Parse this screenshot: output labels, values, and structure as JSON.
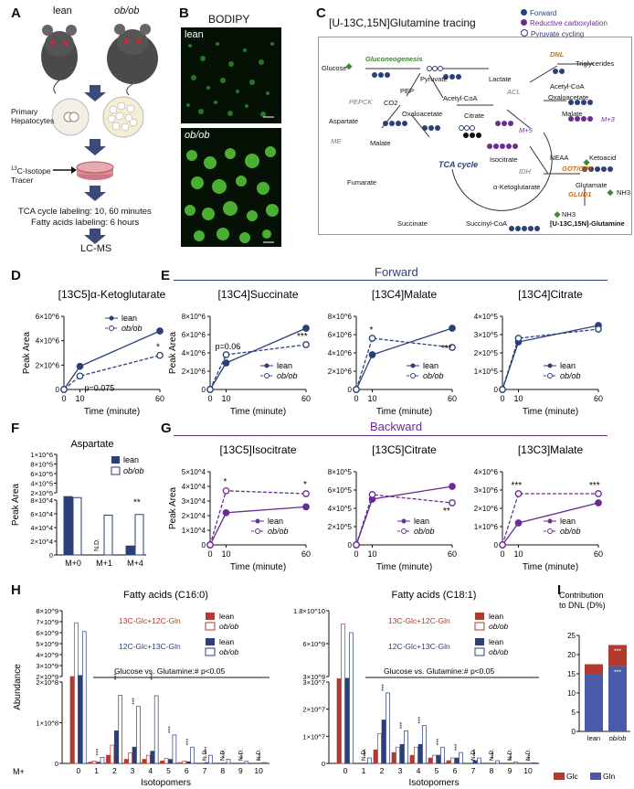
{
  "colors": {
    "lean": "#2b3f7a",
    "obob": "#3d4f8f",
    "purple": "#6b2c91",
    "red": "#b23a2e",
    "green": "#3a8a2a",
    "orange": "#c86a1a",
    "grey": "#777777"
  },
  "panel_labels": {
    "A": "A",
    "B": "B",
    "C": "C",
    "D": "D",
    "E": "E",
    "F": "F",
    "G": "G",
    "H": "H",
    "I": "I"
  },
  "panelA": {
    "lean": "lean",
    "obob": "ob/ob",
    "step1": "Primary",
    "step1b": "Hepatocytes",
    "tracer_sup": "13",
    "tracer": "C-Isotope",
    "tracer2": "Tracer",
    "line1": "TCA cycle labeling: 10, 60 minutes",
    "line2": "Fatty acids labeling: 6 hours",
    "final": "LC-MS"
  },
  "panelB": {
    "title": "BODIPY",
    "top_label": "lean",
    "bottom_label": "ob/ob"
  },
  "panelC": {
    "title": "[U-13C,15N]Glutamine tracing",
    "legend": [
      "Forward",
      "Reductive carboxylation",
      "Pyruvate cycling"
    ],
    "nodes": {
      "glucose": "Glucose",
      "gluconeo": "Gluconeogenesis",
      "pyruvate": "Pyruvate",
      "lactate": "Lactate",
      "pep": "PEP",
      "pepck": "PEPCK",
      "co2": "CO2",
      "acetylcoa": "Acetyl-CoA",
      "oaa": "Oxaloacetate",
      "aspartate": "Aspartate",
      "me": "ME",
      "malate": "Malate",
      "citrate": "Citrate",
      "acl": "ACL",
      "acetylcoa2": "Acetyl-CoA",
      "oaa2": "Oxaloacetate",
      "malate2": "Malate",
      "m3": "M+3",
      "m5": "M+5",
      "dnl": "DNL",
      "triglycerides": "Triglycerides",
      "isocitrate": "Isocitrate",
      "idh": "IDH",
      "tca": "TCA cycle",
      "nh4": "NEAA",
      "ketoacid": "Ketoacid",
      "gotgpt": "GOT/GPT",
      "akg": "α-Ketoglutarate",
      "glutamate": "Glutamate",
      "gludh": "GLUD1",
      "nh3": "NH3",
      "nh3b": "NH3",
      "fumarate": "Fumarate",
      "succinate": "Succinate",
      "succcoa": "Succinyl-CoA",
      "glutamine": "[U-13C,15N]-Glutamine"
    }
  },
  "forward_header": "Forward",
  "backward_header": "Backward",
  "common": {
    "peak_area": "Peak Area",
    "time_label": "Time (minute)",
    "lean": "lean",
    "obob": "ob/ob"
  },
  "chart_data": [
    {
      "id": "D",
      "type": "line",
      "title": "[13C5]α-Ketoglutarate",
      "x": [
        0,
        10,
        60
      ],
      "ylim": [
        0,
        6000000.0
      ],
      "yticks": [
        "0",
        "2×10^6",
        "4×10^6",
        "6×10^6"
      ],
      "series": [
        {
          "name": "lean",
          "values": [
            0,
            1900000.0,
            4800000.0
          ]
        },
        {
          "name": "ob/ob",
          "values": [
            0,
            1100000.0,
            2800000.0
          ]
        }
      ],
      "annotations": [
        "p=0.075",
        "*"
      ]
    },
    {
      "id": "E1",
      "type": "line",
      "title": "[13C4]Succinate",
      "x": [
        0,
        10,
        60
      ],
      "ylim": [
        0,
        8000000.0
      ],
      "yticks": [
        "0",
        "2×10^6",
        "4×10^6",
        "6×10^6",
        "8×10^6"
      ],
      "series": [
        {
          "name": "lean",
          "values": [
            0,
            2900000.0,
            6700000.0
          ]
        },
        {
          "name": "ob/ob",
          "values": [
            0,
            3800000.0,
            4900000.0
          ]
        }
      ],
      "annotations": [
        "p=0.06",
        "***"
      ]
    },
    {
      "id": "E2",
      "type": "line",
      "title": "[13C4]Malate",
      "x": [
        0,
        10,
        60
      ],
      "ylim": [
        0,
        8000000.0
      ],
      "yticks": [
        "0",
        "2×10^6",
        "4×10^6",
        "6×10^6",
        "8×10^6"
      ],
      "series": [
        {
          "name": "lean",
          "values": [
            0,
            3800000.0,
            6700000.0
          ]
        },
        {
          "name": "ob/ob",
          "values": [
            0,
            5600000.0,
            4600000.0
          ]
        }
      ],
      "annotations": [
        "*",
        "***"
      ]
    },
    {
      "id": "E3",
      "type": "line",
      "title": "[13C4]Citrate",
      "x": [
        0,
        10,
        60
      ],
      "ylim": [
        0,
        400000.0
      ],
      "yticks": [
        "0",
        "1×10^5",
        "2×10^5",
        "3×10^5",
        "4×10^5"
      ],
      "series": [
        {
          "name": "lean",
          "values": [
            0,
            260000.0,
            350000.0
          ]
        },
        {
          "name": "ob/ob",
          "values": [
            0,
            280000.0,
            330000.0
          ]
        }
      ],
      "annotations": []
    },
    {
      "id": "F",
      "type": "bar",
      "title": "Aspartate",
      "categories": [
        "M+0",
        "M+1",
        "M+4"
      ],
      "series": [
        {
          "name": "lean",
          "values": [
            120000.0,
            null,
            13000.0
          ]
        },
        {
          "name": "ob/ob",
          "values": [
            100000.0,
            58000.0,
            59000.0
          ]
        }
      ],
      "yticks_upper": [
        "2×10^5",
        "4×10^5",
        "6×10^5",
        "8×10^5",
        "1×10^6"
      ],
      "yticks_lower": [
        "0",
        "2×10^4",
        "4×10^4",
        "6×10^4",
        "8×10^4"
      ],
      "annotations": [
        "N.D.",
        "**"
      ]
    },
    {
      "id": "G1",
      "type": "line",
      "title": "[13C5]Isocitrate",
      "x": [
        0,
        10,
        60
      ],
      "ylim": [
        0,
        50000.0
      ],
      "yticks": [
        "0",
        "1×10^4",
        "2×10^4",
        "3×10^4",
        "4×10^4",
        "5×10^4"
      ],
      "series": [
        {
          "name": "lean",
          "values": [
            0,
            22000.0,
            26000.0
          ]
        },
        {
          "name": "ob/ob",
          "values": [
            0,
            37000.0,
            35000.0
          ]
        }
      ],
      "annotations": [
        "*",
        "*"
      ]
    },
    {
      "id": "G2",
      "type": "line",
      "title": "[13C5]Citrate",
      "x": [
        0,
        10,
        60
      ],
      "ylim": [
        0,
        800000.0
      ],
      "yticks": [
        "0",
        "2×10^5",
        "4×10^5",
        "6×10^5",
        "8×10^5"
      ],
      "series": [
        {
          "name": "lean",
          "values": [
            0,
            500000.0,
            640000.0
          ]
        },
        {
          "name": "ob/ob",
          "values": [
            0,
            550000.0,
            460000.0
          ]
        }
      ],
      "annotations": [
        "**"
      ]
    },
    {
      "id": "G3",
      "type": "line",
      "title": "[13C3]Malate",
      "x": [
        0,
        10,
        60
      ],
      "ylim": [
        0,
        4000000.0
      ],
      "yticks": [
        "0",
        "1×10^6",
        "2×10^6",
        "3×10^6",
        "4×10^6"
      ],
      "series": [
        {
          "name": "lean",
          "values": [
            0,
            1200000.0,
            2300000.0
          ]
        },
        {
          "name": "ob/ob",
          "values": [
            0,
            2800000.0,
            2800000.0
          ]
        }
      ],
      "annotations": [
        "***",
        "***"
      ]
    },
    {
      "id": "H1",
      "type": "bar",
      "title": "Fatty acids (C16:0)",
      "xlabel": "Isotopomers",
      "ylabel": "Abundance",
      "categories": [
        "0",
        "1",
        "2",
        "3",
        "4",
        "5",
        "6",
        "7",
        "8",
        "9",
        "10"
      ],
      "upper_yticks": [
        "2×10^9",
        "3×10^9",
        "4×10^9",
        "5×10^9",
        "6×10^9",
        "7×10^9",
        "8×10^9"
      ],
      "lower_yticks": [
        "0",
        "1×10^8",
        "2×10^8"
      ],
      "series": [
        {
          "name": "13C-Glc lean",
          "values": [
            2000000000.0,
            3000000.0,
            20000000.0,
            10000000.0,
            10000000.0,
            6000000.0,
            2000000.0,
            null,
            null,
            null,
            null
          ]
        },
        {
          "name": "13C-Glc ob/ob",
          "values": [
            6900000000.0,
            6000000.0,
            45000000.0,
            26000000.0,
            20000000.0,
            12000000.0,
            6000000.0,
            null,
            null,
            null,
            null
          ]
        },
        {
          "name": "13C-Gln lean",
          "values": [
            2100000000.0,
            3000000.0,
            80000000.0,
            40000000.0,
            30000000.0,
            10000000.0,
            4000000.0,
            2000000.0,
            1000000.0,
            null,
            null
          ]
        },
        {
          "name": "13C-Gln ob/ob",
          "values": [
            6100000000.0,
            15000000.0,
            280000000.0,
            140000000.0,
            250000000.0,
            70000000.0,
            40000000.0,
            20000000.0,
            10000000.0,
            5000000.0,
            2000000.0
          ]
        }
      ],
      "legend_groups": [
        "13C-Glc+12C-Gln",
        "12C-Glc+13C-Gln"
      ],
      "note": "Glucose vs. Glutamine:# p<0.05"
    },
    {
      "id": "H2",
      "type": "bar",
      "title": "Fatty acids (C18:1)",
      "xlabel": "Isotopomers",
      "categories": [
        "0",
        "1",
        "2",
        "3",
        "4",
        "5",
        "6",
        "7",
        "8",
        "9",
        "10"
      ],
      "upper_yticks": [
        "3×10^9",
        "6×10^9",
        "1.8×10^10"
      ],
      "lower_yticks": [
        "0",
        "1×10^7",
        "2×10^7",
        "3×10^7"
      ],
      "series": [
        {
          "name": "13C-Glc lean",
          "values": [
            2500000000.0,
            null,
            5000000.0,
            4000000.0,
            3000000.0,
            2000000.0,
            1000000.0,
            null,
            null,
            null,
            null
          ]
        },
        {
          "name": "13C-Glc ob/ob",
          "values": [
            15000000000.0,
            null,
            11000000.0,
            6000000.0,
            6000000.0,
            3000000.0,
            2000000.0,
            null,
            null,
            null,
            null
          ]
        },
        {
          "name": "13C-Gln lean",
          "values": [
            2600000000.0,
            null,
            16000000.0,
            7000000.0,
            7000000.0,
            3000000.0,
            2000000.0,
            1000000.0,
            null,
            null,
            null
          ]
        },
        {
          "name": "13C-Gln ob/ob",
          "values": [
            13000000000.0,
            2000000.0,
            26000000.0,
            12000000.0,
            14000000.0,
            6000000.0,
            4000000.0,
            2000000.0,
            1000000.0,
            500000.0,
            200000.0
          ]
        }
      ],
      "legend_groups": [
        "13C-Glc+12C-Gln",
        "12C-Glc+13C-Gln"
      ],
      "note": "Glucose vs. Glutamine:# p<0.05"
    },
    {
      "id": "I",
      "type": "bar",
      "title": "Contribution to DNL (D%)",
      "categories": [
        "lean",
        "ob/ob"
      ],
      "ylim": [
        0,
        25
      ],
      "yticks": [
        "0",
        "5",
        "10",
        "15",
        "20",
        "25"
      ],
      "series": [
        {
          "name": "Glc",
          "values": [
            2.5,
            5.5
          ]
        },
        {
          "name": "Gln",
          "values": [
            15.0,
            17.0
          ]
        }
      ],
      "annotations": [
        "***",
        "***"
      ]
    }
  ]
}
